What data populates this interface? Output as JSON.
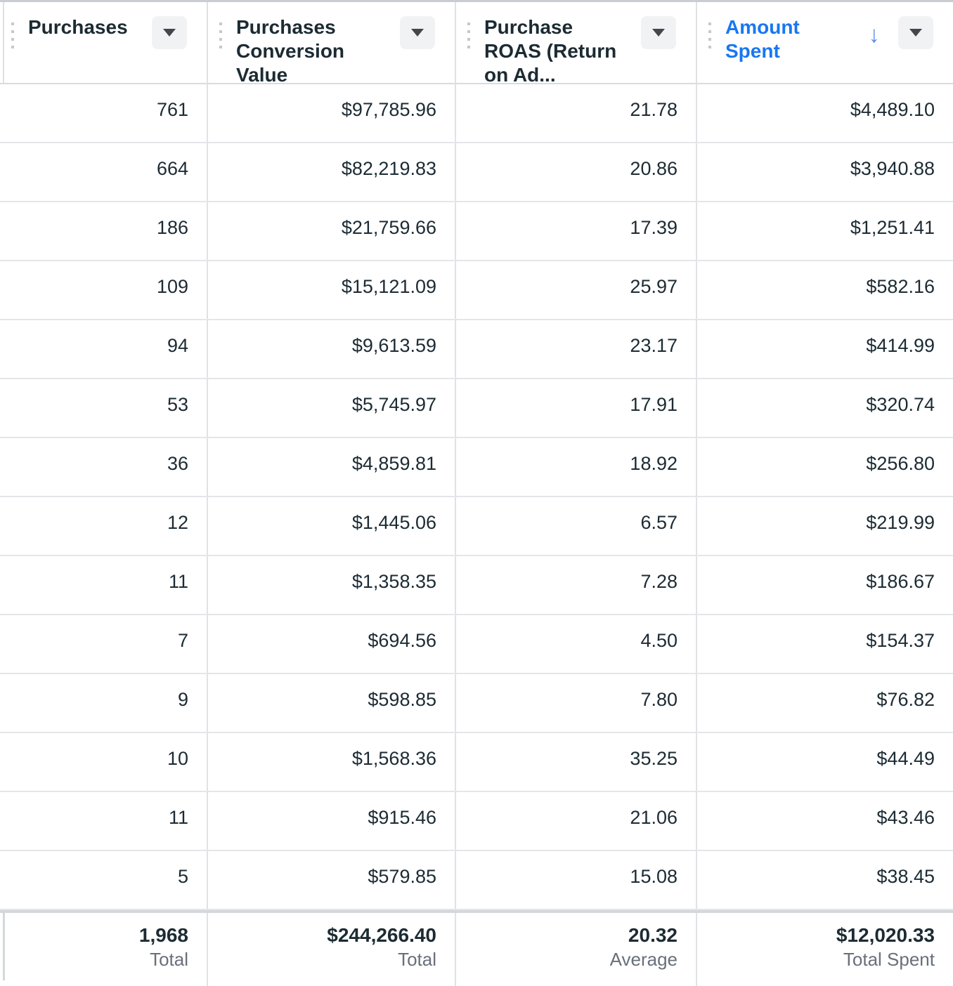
{
  "table": {
    "columns": [
      {
        "key": "purchases",
        "label": "Purchases",
        "sorted": false,
        "menu_icon": "caret-down-icon"
      },
      {
        "key": "purchases-conversion-value",
        "label": "Purchases Conversion Value",
        "sorted": false,
        "menu_icon": "caret-down-icon"
      },
      {
        "key": "purchase-roas",
        "label": "Purchase ROAS (Return on Ad...",
        "sorted": false,
        "menu_icon": "caret-down-icon"
      },
      {
        "key": "amount-spent",
        "label": "Amount Spent",
        "sorted": true,
        "sort_direction": "descending",
        "sort_icon": "down-arrow-icon",
        "menu_icon": "caret-down-icon"
      }
    ],
    "rows": [
      [
        "761",
        "$97,785.96",
        "21.78",
        "$4,489.10"
      ],
      [
        "664",
        "$82,219.83",
        "20.86",
        "$3,940.88"
      ],
      [
        "186",
        "$21,759.66",
        "17.39",
        "$1,251.41"
      ],
      [
        "109",
        "$15,121.09",
        "25.97",
        "$582.16"
      ],
      [
        "94",
        "$9,613.59",
        "23.17",
        "$414.99"
      ],
      [
        "53",
        "$5,745.97",
        "17.91",
        "$320.74"
      ],
      [
        "36",
        "$4,859.81",
        "18.92",
        "$256.80"
      ],
      [
        "12",
        "$1,445.06",
        "6.57",
        "$219.99"
      ],
      [
        "11",
        "$1,358.35",
        "7.28",
        "$186.67"
      ],
      [
        "7",
        "$694.56",
        "4.50",
        "$154.37"
      ],
      [
        "9",
        "$598.85",
        "7.80",
        "$76.82"
      ],
      [
        "10",
        "$1,568.36",
        "35.25",
        "$44.49"
      ],
      [
        "11",
        "$915.46",
        "21.06",
        "$43.46"
      ],
      [
        "5",
        "$579.85",
        "15.08",
        "$38.45"
      ]
    ],
    "footer": [
      {
        "value": "1,968",
        "label": "Total"
      },
      {
        "value": "$244,266.40",
        "label": "Total"
      },
      {
        "value": "20.32",
        "label": "Average"
      },
      {
        "value": "$12,020.33",
        "label": "Total Spent"
      }
    ]
  },
  "colors": {
    "header_text": "#1c2b33",
    "sorted_header_text": "#1877F2",
    "sort_arrow": "#5B8DEF",
    "cell_text": "#1c2b33",
    "footer_label_text": "#68707a",
    "row_border": "#e4e6e9",
    "column_border": "#e0e2e5",
    "footer_top_border": "#d5d8db",
    "dropdown_button_bg": "#f1f2f4",
    "dropdown_caret": "#43464c"
  },
  "icons": {
    "sort_descending": "↓"
  }
}
